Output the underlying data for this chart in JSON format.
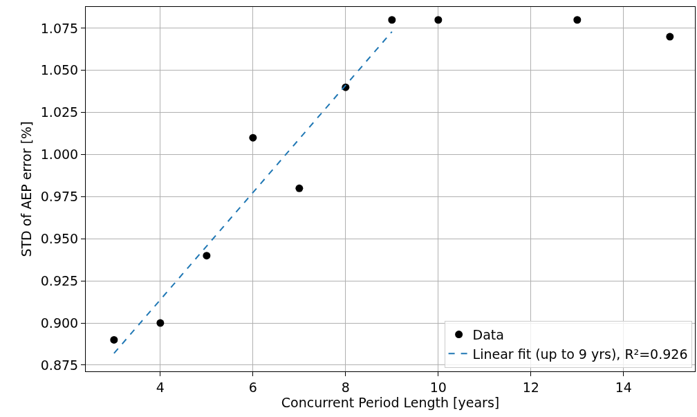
{
  "chart_data": {
    "type": "scatter",
    "xlabel": "Concurrent Period Length [years]",
    "ylabel": "STD of AEP error [%]",
    "x": [
      3,
      4,
      5,
      6,
      7,
      8,
      9,
      10,
      13,
      15
    ],
    "series": [
      {
        "name": "Data",
        "color": "#000000",
        "marker": "circle",
        "values": [
          0.89,
          0.9,
          0.94,
          1.01,
          0.98,
          1.04,
          1.08,
          1.08,
          1.08,
          1.07
        ]
      },
      {
        "name": "Linear fit (up to 9 yrs), R²=0.926",
        "type": "line",
        "color": "#1f77b4",
        "line_style": "dashed",
        "marker": "none",
        "x": [
          3,
          9
        ],
        "values": [
          0.882,
          1.073
        ]
      }
    ],
    "xlim": [
      2.39,
      15.54
    ],
    "xticks": [
      4,
      6,
      8,
      10,
      12,
      14
    ],
    "ylim": [
      0.8713,
      1.0877
    ],
    "yticks": [
      {
        "value": 0.875,
        "label": "0.875"
      },
      {
        "value": 0.9,
        "label": "0.900"
      },
      {
        "value": 0.925,
        "label": "0.925"
      },
      {
        "value": 0.95,
        "label": "0.950"
      },
      {
        "value": 0.975,
        "label": "0.975"
      },
      {
        "value": 1.0,
        "label": "1.000"
      },
      {
        "value": 1.025,
        "label": "1.025"
      },
      {
        "value": 1.05,
        "label": "1.050"
      },
      {
        "value": 1.075,
        "label": "1.075"
      }
    ],
    "grid": true,
    "legend": "bottom right"
  }
}
